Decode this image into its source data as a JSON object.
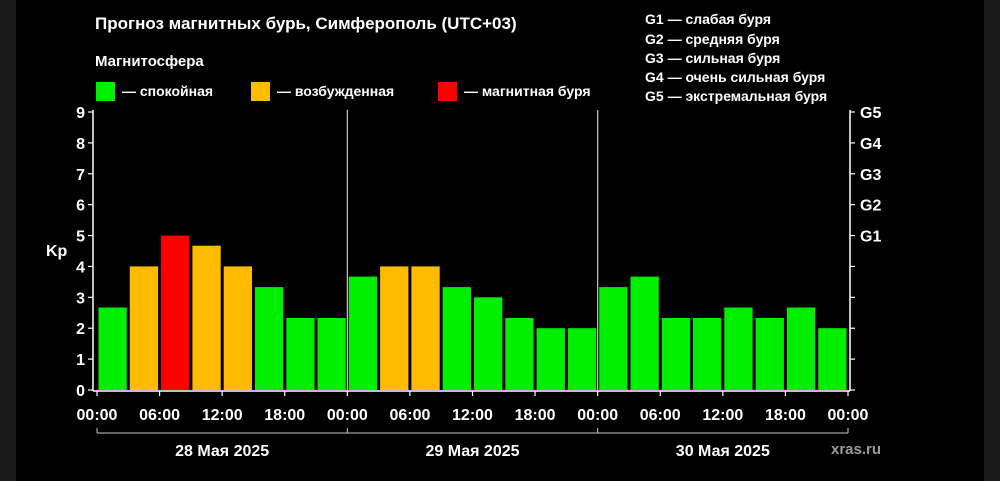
{
  "title": "Прогноз магнитных бурь, Симферополь (UTC+03)",
  "magnetosphere_heading": "Магнитосфера",
  "legend": [
    {
      "label": "— спокойная",
      "color": "#00ee00"
    },
    {
      "label": "— возбужденная",
      "color": "#ffbb00"
    },
    {
      "label": "— магнитная буря",
      "color": "#ff0000"
    }
  ],
  "storm_levels": [
    "G1 — слабая буря",
    "G2 — средняя буря",
    "G3 — сильная буря",
    "G4 — очень сильная буря",
    "G5 — экстремальная буря"
  ],
  "watermark": "xras.ru",
  "colors": {
    "calm": "#00ee00",
    "excited": "#ffbb00",
    "storm": "#ff0000",
    "background": "#000000",
    "axis": "#ffffff"
  },
  "chart_data": {
    "type": "bar",
    "ylabel": "Kp",
    "ylim": [
      0,
      9
    ],
    "y_ticks": [
      "0",
      "1",
      "2",
      "3",
      "4",
      "5",
      "6",
      "7",
      "8",
      "9"
    ],
    "right_ticks": [
      {
        "kp": 5,
        "label": "G1"
      },
      {
        "kp": 6,
        "label": "G2"
      },
      {
        "kp": 7,
        "label": "G3"
      },
      {
        "kp": 8,
        "label": "G4"
      },
      {
        "kp": 9,
        "label": "G5"
      }
    ],
    "x_ticks": [
      "00:00",
      "06:00",
      "12:00",
      "18:00",
      "00:00",
      "06:00",
      "12:00",
      "18:00",
      "00:00",
      "06:00",
      "12:00",
      "18:00",
      "00:00"
    ],
    "days": [
      "28 Мая 2025",
      "29 Мая 2025",
      "30 Мая 2025"
    ],
    "interval_hours": 3,
    "values": [
      2.67,
      4.0,
      5.0,
      4.67,
      4.0,
      3.33,
      2.33,
      2.33,
      3.67,
      4.0,
      4.0,
      3.33,
      3.0,
      2.33,
      2.0,
      2.0,
      3.33,
      3.67,
      2.33,
      2.33,
      2.67,
      2.33,
      2.67,
      2.0
    ],
    "status": [
      "calm",
      "excited",
      "storm",
      "excited",
      "excited",
      "calm",
      "calm",
      "calm",
      "calm",
      "excited",
      "excited",
      "calm",
      "calm",
      "calm",
      "calm",
      "calm",
      "calm",
      "calm",
      "calm",
      "calm",
      "calm",
      "calm",
      "calm",
      "calm"
    ],
    "grid": false,
    "legend_position": "top-left"
  }
}
